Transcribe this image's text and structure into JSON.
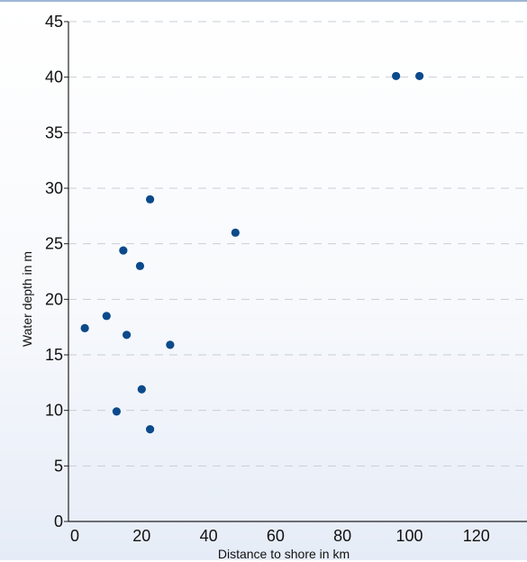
{
  "chart_data": {
    "type": "scatter",
    "xlabel": "Distance to shore in km",
    "ylabel": "Water depth in m",
    "xlim": [
      0,
      130
    ],
    "ylim": [
      0,
      45
    ],
    "x_ticks": [
      "0",
      "20",
      "40",
      "60",
      "80",
      "100",
      "120"
    ],
    "y_ticks": [
      "0",
      "5",
      "10",
      "15",
      "20",
      "25",
      "30",
      "35",
      "40",
      "45"
    ],
    "grid": "horizontal-dashed",
    "marker_color": "#0b4a8b",
    "points": [
      {
        "x": 3,
        "y": 17.4
      },
      {
        "x": 9.5,
        "y": 18.5
      },
      {
        "x": 12.5,
        "y": 9.9
      },
      {
        "x": 14.5,
        "y": 24.4
      },
      {
        "x": 15.5,
        "y": 16.8
      },
      {
        "x": 19.5,
        "y": 23
      },
      {
        "x": 20,
        "y": 11.9
      },
      {
        "x": 22.5,
        "y": 29
      },
      {
        "x": 22.5,
        "y": 8.3
      },
      {
        "x": 28.5,
        "y": 15.9
      },
      {
        "x": 48,
        "y": 26
      },
      {
        "x": 96,
        "y": 40.1
      },
      {
        "x": 103,
        "y": 40.1
      }
    ]
  }
}
